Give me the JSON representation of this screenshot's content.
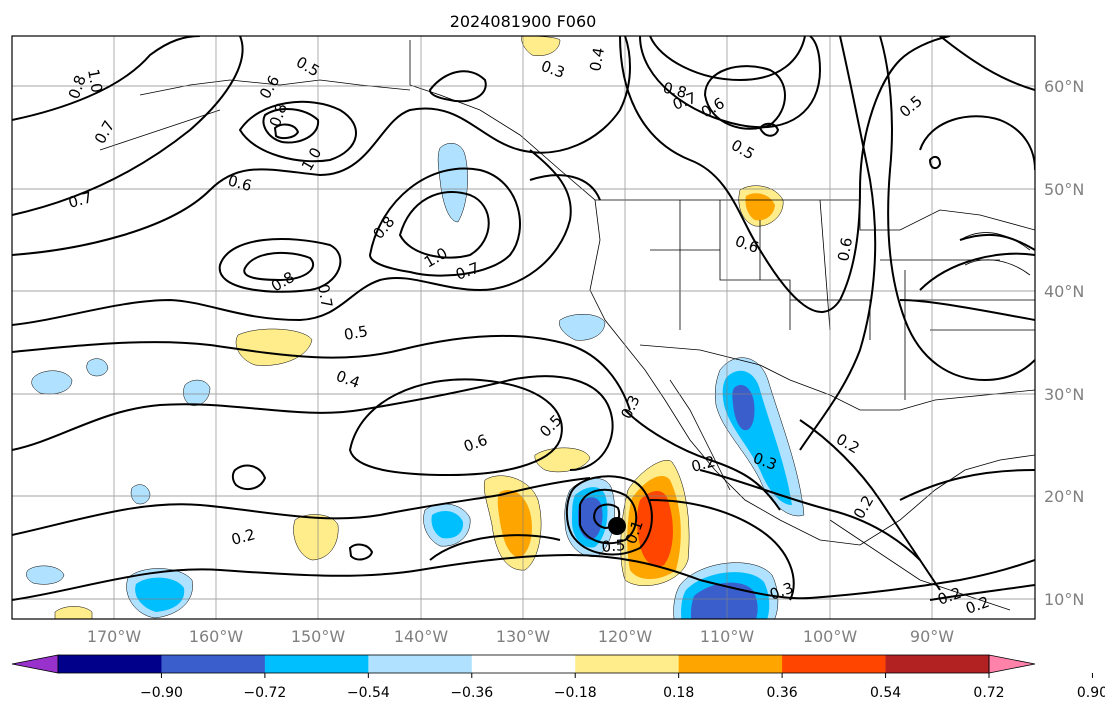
{
  "title": "2024081900 F060",
  "lat_labels": [
    "60°N",
    "50°N",
    "40°N",
    "30°N",
    "20°N",
    "10°N"
  ],
  "lon_labels": [
    "170°W",
    "160°W",
    "150°W",
    "140°W",
    "130°W",
    "120°W",
    "110°W",
    "100°W",
    "90°W"
  ],
  "colorbar": {
    "colors": [
      "#9932cc",
      "#00008b",
      "#3a5fcd",
      "#00bfff",
      "#b0e2ff",
      "#ffffff",
      "#ffec8b",
      "#ffa500",
      "#ff4500",
      "#b22222",
      "#ff82ab"
    ],
    "tick_labels": [
      "−0.90",
      "−0.72",
      "−0.54",
      "−0.36",
      "−0.18",
      "0.18",
      "0.36",
      "0.54",
      "0.72",
      "0.90"
    ]
  },
  "contour_labels": [
    "0.8",
    "1.0",
    "0.5",
    "0.6",
    "0.7",
    "0.8",
    "1.0",
    "0.7",
    "0.6",
    "0.7",
    "0.8",
    "1.0",
    "0.8",
    "0.7",
    "0.5",
    "0.4",
    "0.6",
    "0.5",
    "0.3",
    "0.2",
    "0.3",
    "0.2",
    "0.2",
    "0.3",
    "0.6",
    "0.6",
    "0.8",
    "0.5",
    "0.7",
    "0.6",
    "0.5",
    "0.3",
    "0.4",
    "0.2",
    "0.2",
    "0.2",
    "0.5",
    "0.1"
  ]
}
